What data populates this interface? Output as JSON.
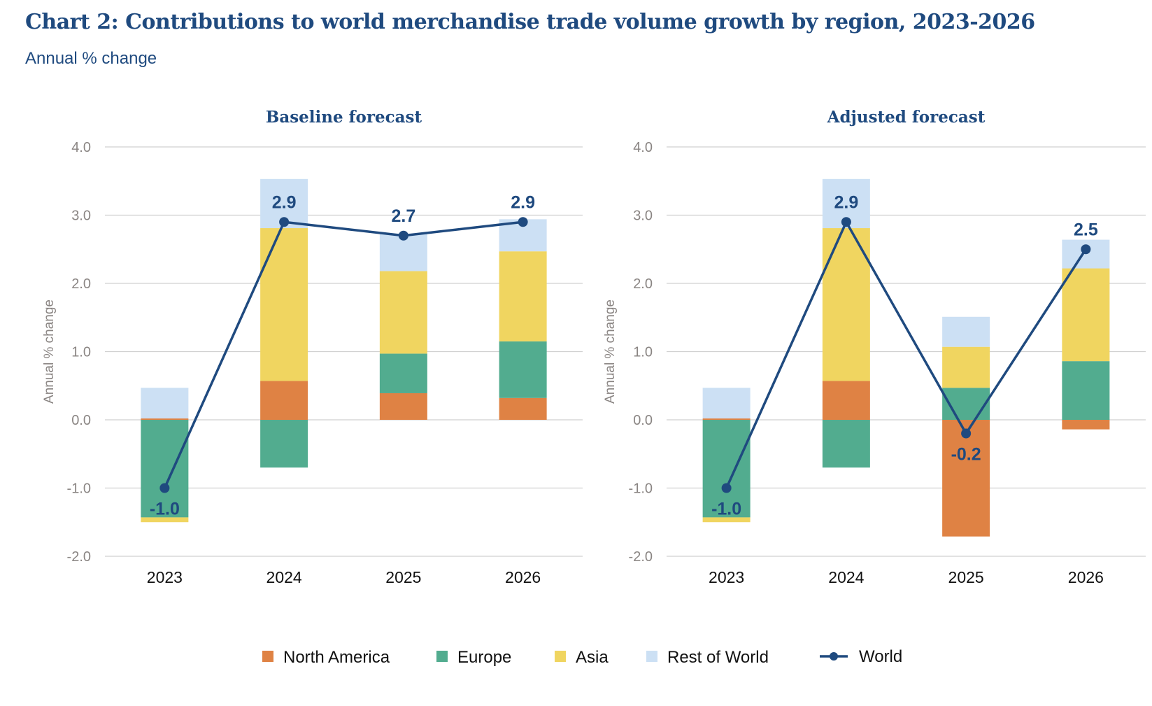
{
  "title": "Chart 2: Contributions to world merchandise trade volume growth by region, 2023-2026",
  "subtitle": "Annual % change",
  "colors": {
    "North America": "#DF8244",
    "Europe": "#52AC8F",
    "Asia": "#F0D560",
    "Rest of World": "#CCE0F4",
    "World": "#1F4A7F"
  },
  "legend": [
    "North America",
    "Europe",
    "Asia",
    "Rest of World",
    "World"
  ],
  "chart_data": [
    {
      "type": "bar",
      "stacked": true,
      "title": "Baseline forecast",
      "ylabel": "Annual % change",
      "ylim": [
        -2.0,
        4.0
      ],
      "yticks": [
        "4.0",
        "3.0",
        "2.0",
        "1.0",
        "0.0",
        "-1.0",
        "-2.0"
      ],
      "grid": true,
      "categories": [
        "2023",
        "2024",
        "2025",
        "2026"
      ],
      "series": [
        {
          "name": "North America",
          "values": [
            0.02,
            0.57,
            0.39,
            0.32
          ]
        },
        {
          "name": "Europe",
          "values": [
            -1.43,
            -0.7,
            0.58,
            0.83
          ]
        },
        {
          "name": "Asia",
          "values": [
            -0.07,
            2.24,
            1.21,
            1.32
          ]
        },
        {
          "name": "Rest of World",
          "values": [
            0.45,
            0.72,
            0.55,
            0.47
          ]
        }
      ],
      "line": {
        "name": "World",
        "values": [
          -1.0,
          2.9,
          2.7,
          2.9
        ],
        "labels": [
          "-1.0",
          "2.9",
          "2.7",
          "2.9"
        ]
      }
    },
    {
      "type": "bar",
      "stacked": true,
      "title": "Adjusted forecast",
      "ylabel": "Annual % change",
      "ylim": [
        -2.0,
        4.0
      ],
      "yticks": [
        "4.0",
        "3.0",
        "2.0",
        "1.0",
        "0.0",
        "-1.0",
        "-2.0"
      ],
      "grid": true,
      "categories": [
        "2023",
        "2024",
        "2025",
        "2026"
      ],
      "series": [
        {
          "name": "North America",
          "values": [
            0.02,
            0.57,
            -1.71,
            -0.14
          ]
        },
        {
          "name": "Europe",
          "values": [
            -1.43,
            -0.7,
            0.47,
            0.86
          ]
        },
        {
          "name": "Asia",
          "values": [
            -0.07,
            2.24,
            0.6,
            1.36
          ]
        },
        {
          "name": "Rest of World",
          "values": [
            0.45,
            0.72,
            0.44,
            0.42
          ]
        }
      ],
      "line": {
        "name": "World",
        "values": [
          -1.0,
          2.9,
          -0.2,
          2.5
        ],
        "labels": [
          "-1.0",
          "2.9",
          "-0.2",
          "2.5"
        ]
      }
    }
  ]
}
